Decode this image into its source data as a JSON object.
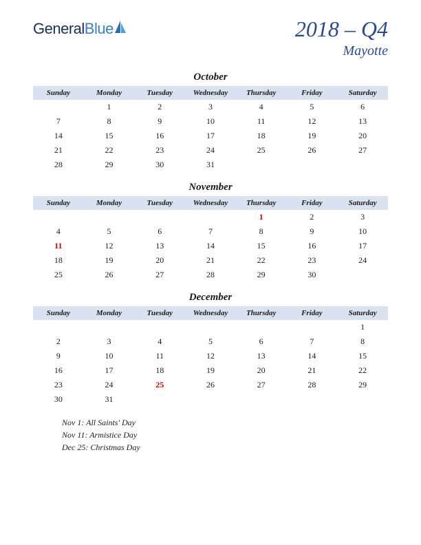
{
  "logo": {
    "general": "General",
    "blue": "Blue"
  },
  "title": {
    "main": "2018 – Q4",
    "sub": "Mayotte"
  },
  "colors": {
    "header_bg": "#d9e2f0",
    "text": "#1a1a1a",
    "holiday": "#cc0000",
    "brand_dark": "#1a2e5c",
    "brand_blue": "#3a7fc4",
    "title": "#2b4a8f"
  },
  "weekdays": [
    "Sunday",
    "Monday",
    "Tuesday",
    "Wednesday",
    "Thursday",
    "Friday",
    "Saturday"
  ],
  "months": [
    {
      "name": "October",
      "rows": [
        [
          "",
          "1",
          "2",
          "3",
          "4",
          "5",
          "6"
        ],
        [
          "7",
          "8",
          "9",
          "10",
          "11",
          "12",
          "13"
        ],
        [
          "14",
          "15",
          "16",
          "17",
          "18",
          "19",
          "20"
        ],
        [
          "21",
          "22",
          "23",
          "24",
          "25",
          "26",
          "27"
        ],
        [
          "28",
          "29",
          "30",
          "31",
          "",
          "",
          ""
        ]
      ],
      "holidays": []
    },
    {
      "name": "November",
      "rows": [
        [
          "",
          "",
          "",
          "",
          "1",
          "2",
          "3"
        ],
        [
          "4",
          "5",
          "6",
          "7",
          "8",
          "9",
          "10"
        ],
        [
          "11",
          "12",
          "13",
          "14",
          "15",
          "16",
          "17"
        ],
        [
          "18",
          "19",
          "20",
          "21",
          "22",
          "23",
          "24"
        ],
        [
          "25",
          "26",
          "27",
          "28",
          "29",
          "30",
          ""
        ]
      ],
      "holidays": [
        "1",
        "11"
      ]
    },
    {
      "name": "December",
      "rows": [
        [
          "",
          "",
          "",
          "",
          "",
          "",
          "1"
        ],
        [
          "2",
          "3",
          "4",
          "5",
          "6",
          "7",
          "8"
        ],
        [
          "9",
          "10",
          "11",
          "12",
          "13",
          "14",
          "15"
        ],
        [
          "16",
          "17",
          "18",
          "19",
          "20",
          "21",
          "22"
        ],
        [
          "23",
          "24",
          "25",
          "26",
          "27",
          "28",
          "29"
        ],
        [
          "30",
          "31",
          "",
          "",
          "",
          "",
          ""
        ]
      ],
      "holidays": [
        "25"
      ]
    }
  ],
  "holiday_list": [
    "Nov 1: All Saints' Day",
    "Nov 11: Armistice Day",
    "Dec 25: Christmas Day"
  ]
}
